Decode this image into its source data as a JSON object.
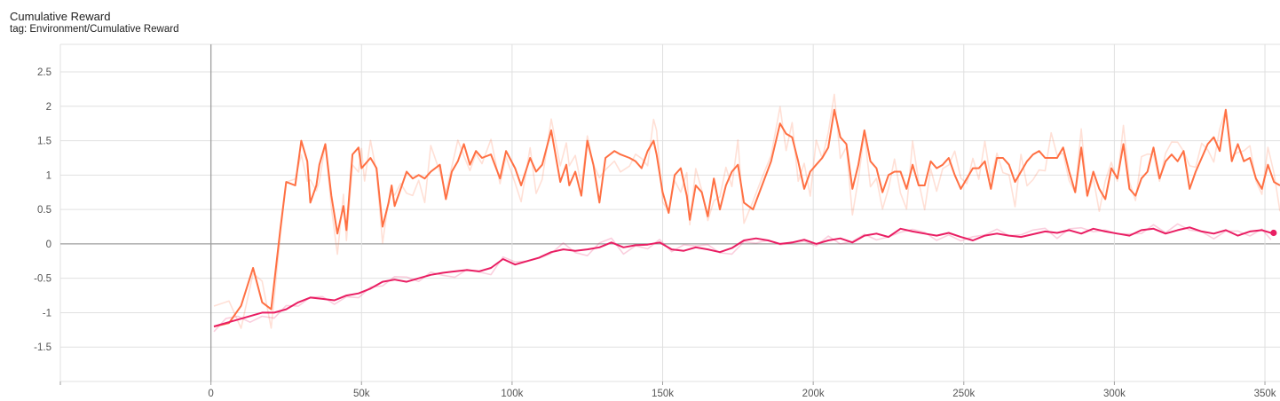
{
  "card": {
    "title": "Cumulative Reward",
    "subtitle": "tag: Environment/Cumulative Reward"
  },
  "colors": {
    "series_a": "#ff7043",
    "series_b": "#e91e63",
    "grid": "#e0e0e0",
    "zero_axis": "#9e9e9e"
  },
  "chart_data": {
    "type": "line",
    "title": "Cumulative Reward",
    "subtitle": "tag: Environment/Cumulative Reward",
    "xlabel": "",
    "ylabel": "",
    "xlim": [
      -50000,
      355000
    ],
    "ylim": [
      -2.0,
      2.9
    ],
    "x_ticks": [
      0,
      50000,
      100000,
      150000,
      200000,
      250000,
      300000,
      350000
    ],
    "x_tick_labels": [
      "0",
      "50k",
      "100k",
      "150k",
      "200k",
      "250k",
      "300k",
      "350k"
    ],
    "y_ticks": [
      2.5,
      2,
      1.5,
      1,
      0.5,
      0,
      -0.5,
      -1,
      -1.5
    ],
    "y_tick_labels": [
      "2.5",
      "2",
      "1.5",
      "1",
      "0.5",
      "0",
      "-0.5",
      "-1",
      "-1.5"
    ],
    "grid": true,
    "smoothing": "raw series drawn faded behind smoothed series",
    "series": [
      {
        "color": "#ff7043",
        "x": [
          1000,
          6000,
          10000,
          14000,
          17000,
          20000,
          23000,
          25000,
          28000,
          30000,
          32000,
          33000,
          35000,
          36000,
          38000,
          40000,
          42000,
          44000,
          45000,
          47000,
          49000,
          50000,
          51000,
          53000,
          55000,
          57000,
          59000,
          60000,
          61000,
          63000,
          65000,
          67000,
          69000,
          71000,
          73000,
          76000,
          78000,
          80000,
          82000,
          84000,
          86000,
          88000,
          90000,
          93000,
          96000,
          98000,
          101000,
          103000,
          106000,
          108000,
          110000,
          113000,
          116000,
          118000,
          119000,
          121000,
          123000,
          125000,
          127000,
          129000,
          131000,
          134000,
          136000,
          139000,
          141000,
          143000,
          145000,
          147000,
          148000,
          150000,
          152000,
          154000,
          156000,
          158000,
          159000,
          161000,
          163000,
          165000,
          167000,
          169000,
          171000,
          173000,
          175000,
          177000,
          180000,
          183000,
          186000,
          189000,
          191000,
          193000,
          195000,
          197000,
          199000,
          201000,
          203000,
          205000,
          207000,
          209000,
          211000,
          213000,
          215000,
          217000,
          219000,
          221000,
          223000,
          225000,
          227000,
          229000,
          231000,
          233000,
          235000,
          237000,
          239000,
          241000,
          243000,
          245000,
          247000,
          249000,
          251000,
          253000,
          255000,
          257000,
          259000,
          261000,
          263000,
          265000,
          267000,
          269000,
          271000,
          273000,
          275000,
          277000,
          279000,
          281000,
          283000,
          285000,
          287000,
          289000,
          291000,
          293000,
          295000,
          297000,
          299000,
          301000,
          303000,
          305000,
          307000,
          309000,
          311000,
          313000,
          315000,
          317000,
          319000,
          321000,
          323000,
          325000,
          327000,
          329000,
          331000,
          333000,
          335000,
          337000,
          339000,
          341000,
          343000,
          345000,
          347000,
          349000,
          351000,
          353000,
          355000
        ],
        "values": [
          -1.2,
          -1.15,
          -0.9,
          -0.35,
          -0.85,
          -0.95,
          0.2,
          0.9,
          0.85,
          1.5,
          1.2,
          0.6,
          0.85,
          1.15,
          1.45,
          0.7,
          0.15,
          0.55,
          0.2,
          1.3,
          1.4,
          1.1,
          1.15,
          1.25,
          1.1,
          0.25,
          0.6,
          0.85,
          0.55,
          0.8,
          1.05,
          0.95,
          1.0,
          0.95,
          1.05,
          1.15,
          0.65,
          1.05,
          1.2,
          1.45,
          1.15,
          1.35,
          1.25,
          1.3,
          0.95,
          1.35,
          1.1,
          0.85,
          1.25,
          1.05,
          1.15,
          1.65,
          0.9,
          1.15,
          0.85,
          1.05,
          0.7,
          1.5,
          1.15,
          0.6,
          1.25,
          1.35,
          1.3,
          1.25,
          1.2,
          1.1,
          1.35,
          1.5,
          1.3,
          0.75,
          0.45,
          1.0,
          1.1,
          0.7,
          0.35,
          0.85,
          0.75,
          0.4,
          0.95,
          0.5,
          0.85,
          1.05,
          1.15,
          0.6,
          0.5,
          0.85,
          1.2,
          1.75,
          1.6,
          1.55,
          1.2,
          0.8,
          1.05,
          1.15,
          1.25,
          1.4,
          1.95,
          1.55,
          1.45,
          0.8,
          1.15,
          1.65,
          1.2,
          1.1,
          0.75,
          1.0,
          1.05,
          1.05,
          0.8,
          1.15,
          0.85,
          0.85,
          1.2,
          1.1,
          1.15,
          1.25,
          1.0,
          0.8,
          0.95,
          1.1,
          1.1,
          1.2,
          0.8,
          1.25,
          1.25,
          1.15,
          0.9,
          1.05,
          1.2,
          1.3,
          1.35,
          1.25,
          1.25,
          1.25,
          1.4,
          1.05,
          0.75,
          1.4,
          0.7,
          1.05,
          0.8,
          0.65,
          1.1,
          0.95,
          1.45,
          0.8,
          0.7,
          0.95,
          1.05,
          1.4,
          0.95,
          1.2,
          1.3,
          1.2,
          1.35,
          0.8,
          1.05,
          1.25,
          1.45,
          1.55,
          1.35,
          1.95,
          1.2,
          1.45,
          1.2,
          1.25,
          0.95,
          0.8,
          1.15,
          0.9,
          0.85
        ]
      },
      {
        "color": "#e91e63",
        "x": [
          1000,
          5000,
          9000,
          13000,
          17000,
          21000,
          25000,
          29000,
          33000,
          37000,
          41000,
          45000,
          49000,
          53000,
          57000,
          61000,
          65000,
          69000,
          73000,
          77000,
          81000,
          85000,
          89000,
          93000,
          97000,
          101000,
          105000,
          109000,
          113000,
          117000,
          121000,
          125000,
          129000,
          133000,
          137000,
          141000,
          145000,
          149000,
          153000,
          157000,
          161000,
          165000,
          169000,
          173000,
          177000,
          181000,
          185000,
          189000,
          193000,
          197000,
          201000,
          205000,
          209000,
          213000,
          217000,
          221000,
          225000,
          229000,
          233000,
          237000,
          241000,
          245000,
          249000,
          253000,
          257000,
          261000,
          265000,
          269000,
          273000,
          277000,
          281000,
          285000,
          289000,
          293000,
          297000,
          301000,
          305000,
          309000,
          313000,
          317000,
          321000,
          325000,
          329000,
          333000,
          337000,
          341000,
          345000,
          349000,
          352000
        ],
        "values": [
          -1.2,
          -1.15,
          -1.1,
          -1.05,
          -1.0,
          -1.0,
          -0.95,
          -0.85,
          -0.78,
          -0.8,
          -0.82,
          -0.75,
          -0.72,
          -0.65,
          -0.55,
          -0.52,
          -0.55,
          -0.5,
          -0.45,
          -0.42,
          -0.4,
          -0.38,
          -0.4,
          -0.35,
          -0.22,
          -0.3,
          -0.25,
          -0.2,
          -0.12,
          -0.08,
          -0.1,
          -0.08,
          -0.05,
          0.02,
          -0.05,
          -0.02,
          -0.01,
          0.02,
          -0.08,
          -0.1,
          -0.05,
          -0.08,
          -0.12,
          -0.06,
          0.05,
          0.08,
          0.05,
          0.0,
          0.02,
          0.06,
          0.0,
          0.05,
          0.08,
          0.02,
          0.12,
          0.15,
          0.1,
          0.22,
          0.18,
          0.15,
          0.12,
          0.16,
          0.1,
          0.05,
          0.12,
          0.15,
          0.12,
          0.1,
          0.14,
          0.18,
          0.16,
          0.2,
          0.15,
          0.22,
          0.18,
          0.15,
          0.12,
          0.2,
          0.22,
          0.15,
          0.2,
          0.24,
          0.18,
          0.15,
          0.2,
          0.12,
          0.18,
          0.2,
          0.16
        ]
      }
    ]
  }
}
